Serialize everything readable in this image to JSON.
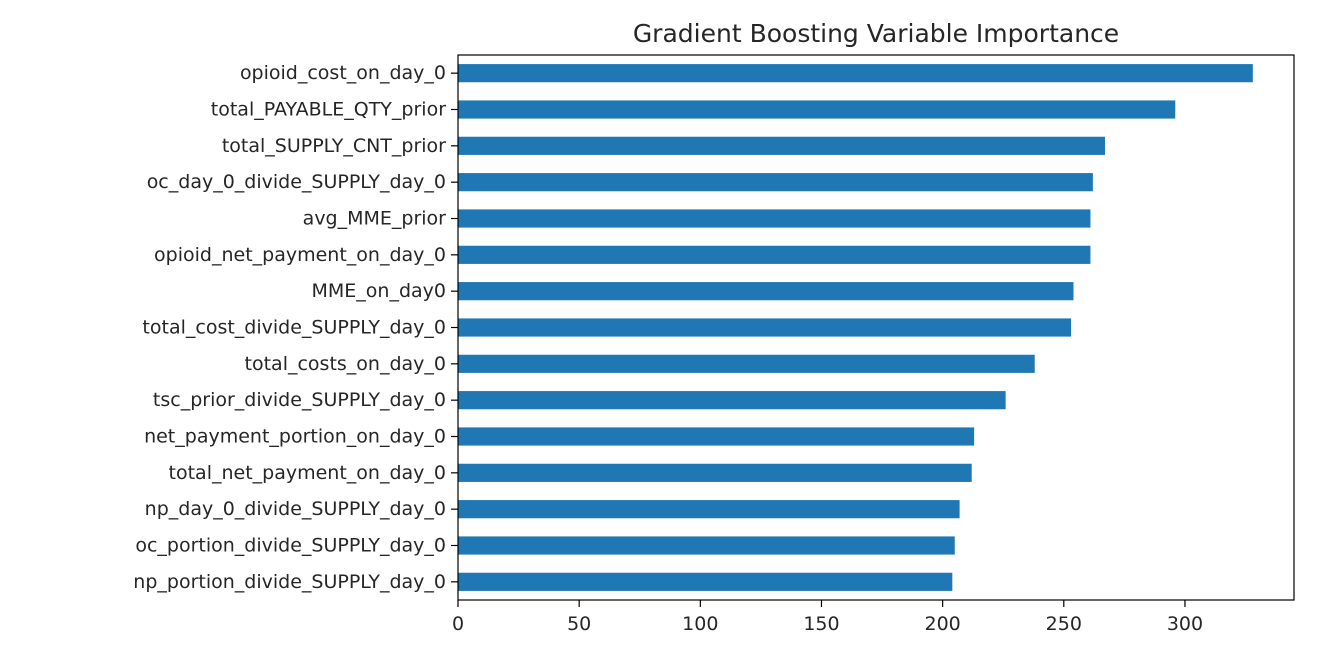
{
  "chart_data": {
    "type": "bar",
    "orientation": "horizontal",
    "title": "Gradient Boosting Variable Importance",
    "xlabel": "",
    "ylabel": "",
    "xlim": [
      0,
      345
    ],
    "xticks": [
      0,
      50,
      100,
      150,
      200,
      250,
      300
    ],
    "grid": false,
    "bar_color": "#1f77b4",
    "categories": [
      "opioid_cost_on_day_0",
      "total_PAYABLE_QTY_prior",
      "total_SUPPLY_CNT_prior",
      "oc_day_0_divide_SUPPLY_day_0",
      "avg_MME_prior",
      "opioid_net_payment_on_day_0",
      "MME_on_day0",
      "total_cost_divide_SUPPLY_day_0",
      "total_costs_on_day_0",
      "tsc_prior_divide_SUPPLY_day_0",
      "net_payment_portion_on_day_0",
      "total_net_payment_on_day_0",
      "np_day_0_divide_SUPPLY_day_0",
      "oc_portion_divide_SUPPLY_day_0",
      "np_portion_divide_SUPPLY_day_0"
    ],
    "values": [
      328,
      296,
      267,
      262,
      261,
      261,
      254,
      253,
      238,
      226,
      213,
      212,
      207,
      205,
      204
    ]
  }
}
